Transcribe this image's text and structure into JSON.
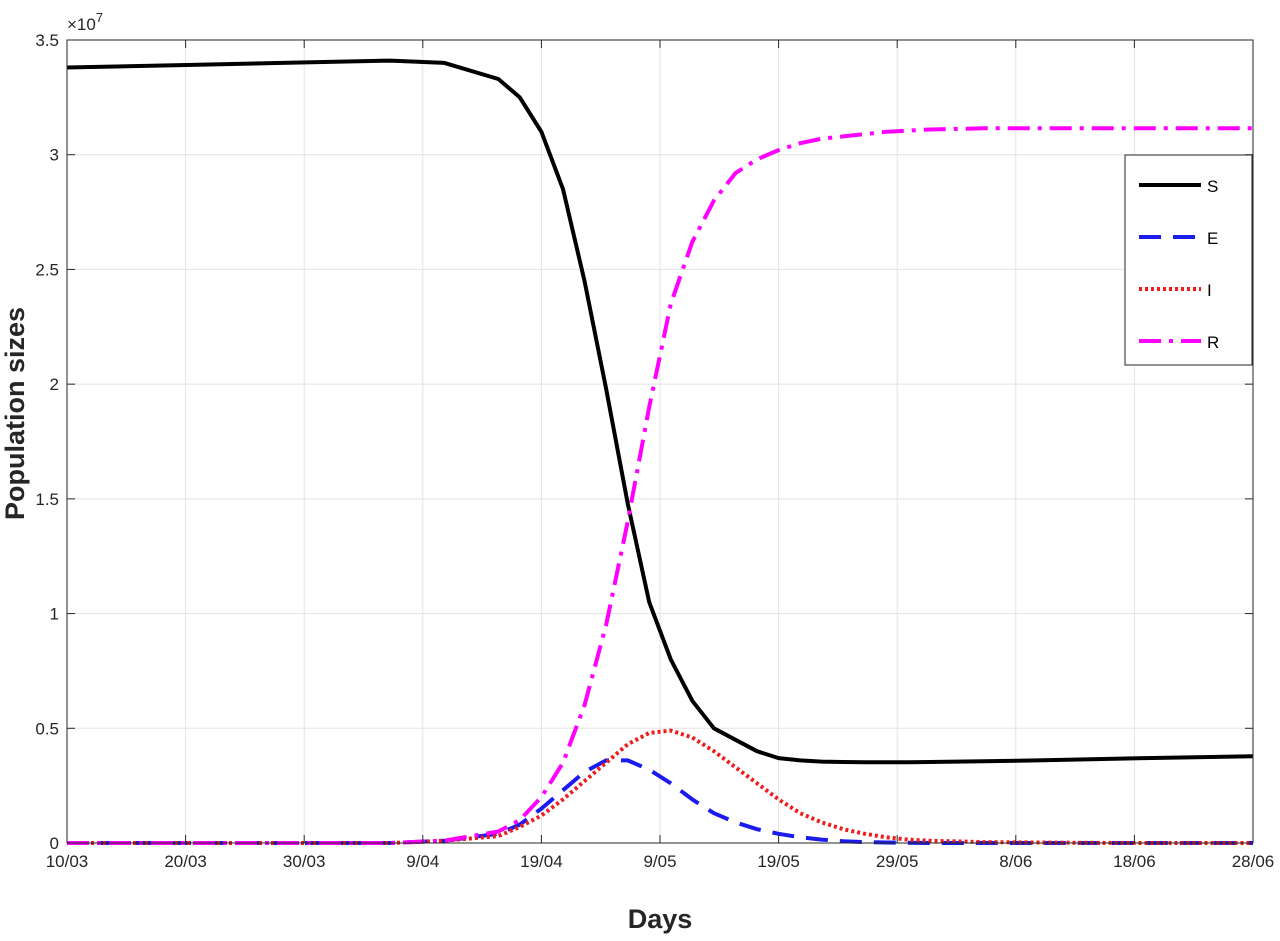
{
  "chart_data": {
    "type": "line",
    "title": "",
    "xlabel": "Days",
    "ylabel": "Population sizes",
    "y_multiplier_base": "×10",
    "y_multiplier_exponent": "7",
    "x_tick_labels": [
      "10/03",
      "20/03",
      "30/03",
      "9/04",
      "19/04",
      "9/05",
      "19/05",
      "29/05",
      "8/06",
      "18/06",
      "28/06"
    ],
    "y_tick_values": [
      0,
      0.5,
      1,
      1.5,
      2,
      2.5,
      3,
      3.5
    ],
    "y_tick_labels": [
      "0",
      "0.5",
      "1",
      "1.5",
      "2",
      "2.5",
      "3",
      "3.5"
    ],
    "ylim": [
      0,
      3.5
    ],
    "grid": true,
    "legend_position": "top-right",
    "x": [
      0,
      10,
      20,
      30,
      35,
      40,
      42,
      44,
      46,
      48,
      50,
      52,
      54,
      56,
      58,
      60,
      62,
      64,
      66,
      68,
      70,
      72,
      74,
      76,
      78,
      80,
      85,
      90,
      95,
      100,
      110
    ],
    "series": [
      {
        "name": "S",
        "color": "#000000",
        "style": "solid",
        "values": [
          3.38,
          3.39,
          3.4,
          3.41,
          3.4,
          3.33,
          3.25,
          3.1,
          2.85,
          2.45,
          1.98,
          1.48,
          1.05,
          0.8,
          0.62,
          0.5,
          0.45,
          0.4,
          0.37,
          0.36,
          0.355,
          0.353,
          0.352,
          0.352,
          0.352,
          0.353,
          0.356,
          0.36,
          0.365,
          0.37,
          0.378
        ]
      },
      {
        "name": "E",
        "color": "#1b1bf0",
        "style": "dashed",
        "values": [
          0,
          0,
          0,
          0,
          0.01,
          0.04,
          0.08,
          0.15,
          0.23,
          0.31,
          0.36,
          0.36,
          0.32,
          0.26,
          0.19,
          0.13,
          0.09,
          0.06,
          0.04,
          0.025,
          0.015,
          0.008,
          0.004,
          0.002,
          0.001,
          0,
          0,
          0,
          0,
          0,
          0
        ]
      },
      {
        "name": "I",
        "color": "#ee1c1c",
        "style": "dotted",
        "values": [
          0,
          0,
          0,
          0,
          0.01,
          0.03,
          0.07,
          0.12,
          0.19,
          0.27,
          0.35,
          0.43,
          0.48,
          0.49,
          0.46,
          0.4,
          0.33,
          0.26,
          0.19,
          0.13,
          0.09,
          0.06,
          0.04,
          0.025,
          0.015,
          0.01,
          0.004,
          0.002,
          0.001,
          0,
          0
        ]
      },
      {
        "name": "R",
        "color": "#ff00ff",
        "style": "dashdot",
        "values": [
          0,
          0,
          0,
          0,
          0.01,
          0.05,
          0.1,
          0.2,
          0.35,
          0.6,
          0.95,
          1.4,
          1.9,
          2.35,
          2.62,
          2.8,
          2.92,
          2.98,
          3.02,
          3.05,
          3.07,
          3.08,
          3.09,
          3.1,
          3.105,
          3.11,
          3.115,
          3.115,
          3.115,
          3.115,
          3.115
        ]
      }
    ]
  }
}
